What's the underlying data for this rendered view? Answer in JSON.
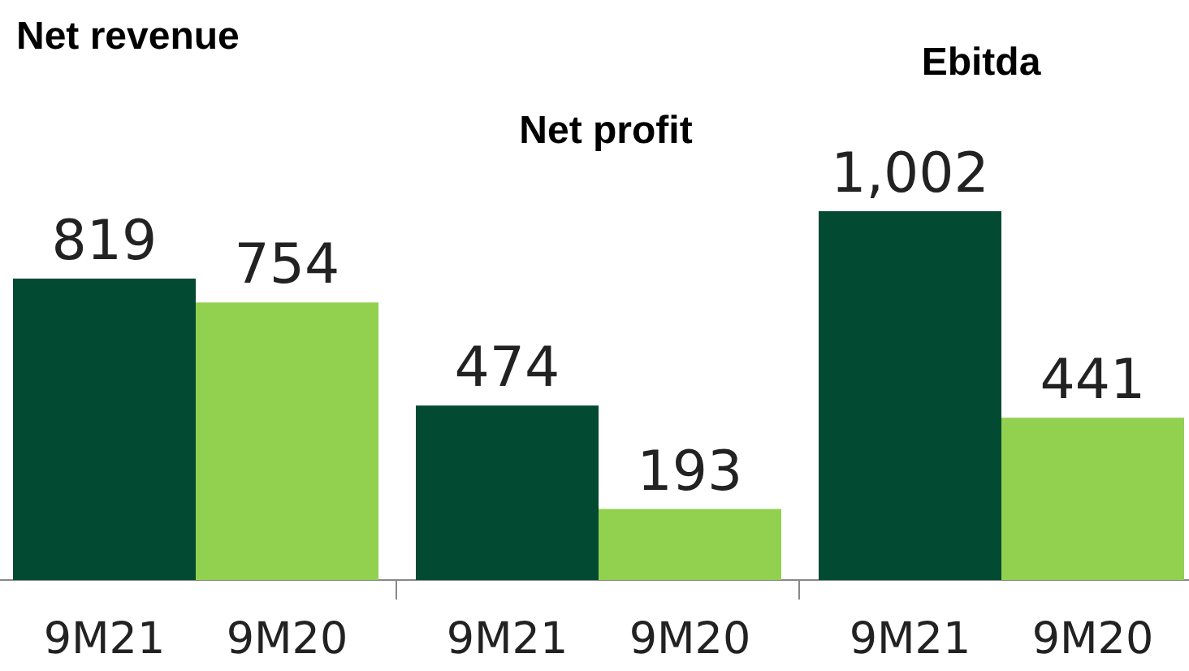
{
  "chart_data": [
    {
      "type": "bar",
      "title": "Net revenue",
      "categories": [
        "9M21",
        "9M20"
      ],
      "values": [
        819,
        754
      ],
      "colors": [
        "#034a32",
        "#92d050"
      ],
      "data_labels": true
    },
    {
      "type": "bar",
      "title": "Net profit",
      "categories": [
        "9M21",
        "9M20"
      ],
      "values": [
        474,
        193
      ],
      "colors": [
        "#034a32",
        "#92d050"
      ],
      "data_labels": true
    },
    {
      "type": "bar",
      "title": "Ebitda",
      "categories": [
        "9M21",
        "9M20"
      ],
      "values": [
        1002,
        441
      ],
      "value_labels": [
        "1,002",
        "441"
      ],
      "colors": [
        "#034a32",
        "#92d050"
      ]
    }
  ]
}
